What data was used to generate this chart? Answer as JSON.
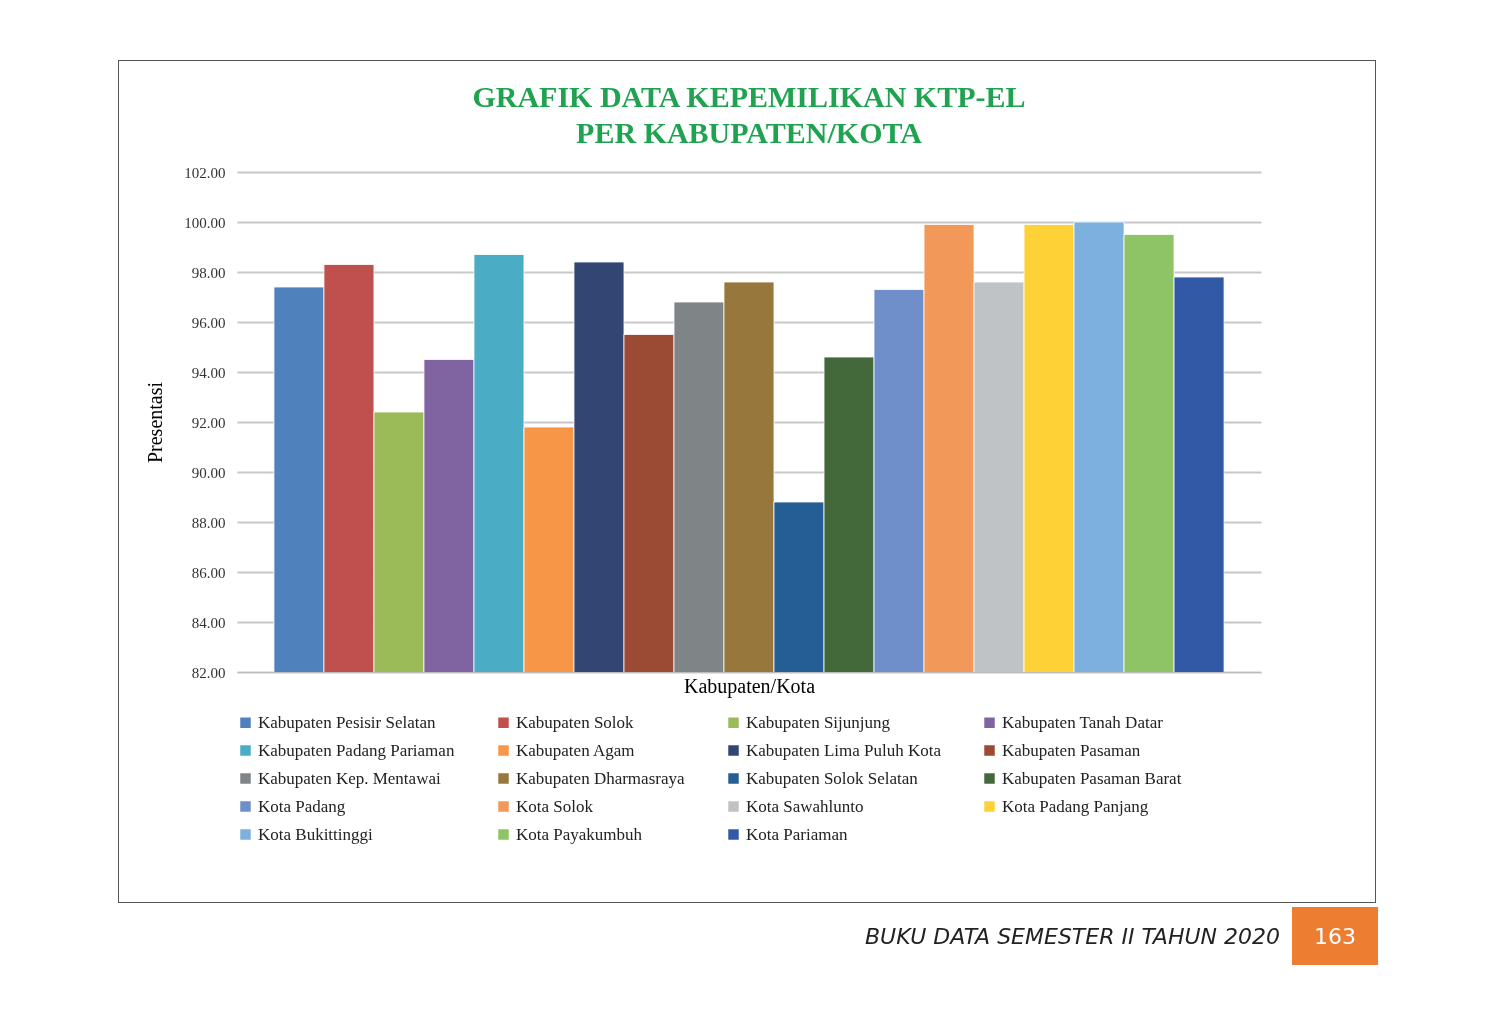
{
  "chart_data": {
    "type": "bar",
    "title": "GRAFIK DATA KEPEMILIKAN KTP-EL\nPER KABUPATEN/KOTA",
    "xlabel": "Kabupaten/Kota",
    "ylabel": "Presentasi",
    "categories": [
      null
    ],
    "series": [
      {
        "name": "Kabupaten Pesisir Selatan",
        "color": "#4f81bd",
        "values": [
          97.4
        ]
      },
      {
        "name": "Kabupaten Solok",
        "color": "#c0504d",
        "values": [
          98.3
        ]
      },
      {
        "name": "Kabupaten Sijunjung",
        "color": "#9bbb59",
        "values": [
          92.4
        ]
      },
      {
        "name": "Kabupaten Tanah Datar",
        "color": "#8064a2",
        "values": [
          94.5
        ]
      },
      {
        "name": "Kabupaten Padang Pariaman",
        "color": "#4bacc6",
        "values": [
          98.7
        ]
      },
      {
        "name": "Kabupaten Agam",
        "color": "#f79646",
        "values": [
          91.8
        ]
      },
      {
        "name": "Kabupaten Lima Puluh Kota",
        "color": "#334673",
        "values": [
          98.4
        ]
      },
      {
        "name": "Kabupaten Pasaman",
        "color": "#9b4a33",
        "values": [
          95.5
        ]
      },
      {
        "name": "Kabupaten Kep. Mentawai",
        "color": "#7f8487",
        "values": [
          96.8
        ]
      },
      {
        "name": "Kabupaten Dharmasraya",
        "color": "#98773c",
        "values": [
          97.6
        ]
      },
      {
        "name": "Kabupaten Solok Selatan",
        "color": "#245e94",
        "values": [
          88.8
        ]
      },
      {
        "name": "Kabupaten Pasaman Barat",
        "color": "#43693a",
        "values": [
          94.6
        ]
      },
      {
        "name": "Kota Padang",
        "color": "#6e8fc9",
        "values": [
          97.3
        ]
      },
      {
        "name": "Kota Solok",
        "color": "#f2995a",
        "values": [
          99.9
        ]
      },
      {
        "name": "Kota Sawahlunto",
        "color": "#c0c3c5",
        "values": [
          97.6
        ]
      },
      {
        "name": "Kota Padang Panjang",
        "color": "#fed137",
        "values": [
          99.9
        ]
      },
      {
        "name": "Kota Bukittinggi",
        "color": "#7eb0de",
        "values": [
          100.0
        ]
      },
      {
        "name": "Kota Payakumbuh",
        "color": "#8fc466",
        "values": [
          99.5
        ]
      },
      {
        "name": "Kota Pariaman",
        "color": "#3259a5",
        "values": [
          97.8
        ]
      }
    ],
    "ylim": [
      82,
      102
    ],
    "yticks": [
      {
        "value": 82,
        "label": "82.00"
      },
      {
        "value": 84,
        "label": "84.00"
      },
      {
        "value": 86,
        "label": "86.00"
      },
      {
        "value": 88,
        "label": "88.00"
      },
      {
        "value": 90,
        "label": "90.00"
      },
      {
        "value": 92,
        "label": "92.00"
      },
      {
        "value": 94,
        "label": "94.00"
      },
      {
        "value": 96,
        "label": "96.00"
      },
      {
        "value": 98,
        "label": "98.00"
      },
      {
        "value": 100,
        "label": "100.00"
      },
      {
        "value": 102,
        "label": "102.00"
      }
    ],
    "grid": "y",
    "legend": "bottom",
    "annotations": [
      "BUKU DATA SEMESTER II TAHUN 2020",
      "163"
    ]
  }
}
